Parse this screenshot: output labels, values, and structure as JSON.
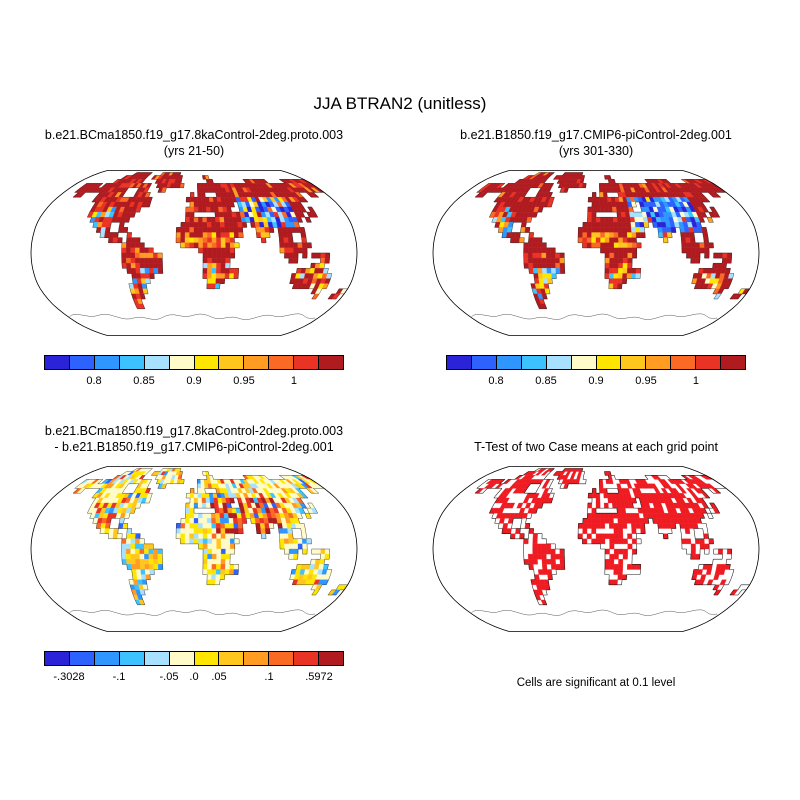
{
  "figure_title": "JJA BTRAN2 (unitless)",
  "colors": {
    "background": "#ffffff",
    "coastline": "#1c1c1c",
    "ttest_red": "#ee1c22",
    "scale": [
      "#2a23d8",
      "#2e62ff",
      "#2f96ff",
      "#3cc3ff",
      "#a8e1ff",
      "#fffbc8",
      "#ffe600",
      "#ffc61e",
      "#ff9c21",
      "#fa6a24",
      "#e93325",
      "#b01b20"
    ]
  },
  "chart_data": [
    {
      "type": "heatmap",
      "projection": "robinson",
      "title": "b.e21.BCma1850.f19_g17.8kaControl-2deg.proto.003",
      "subtitle": "(yrs 21-50)",
      "variable": "JJA BTRAN2",
      "units": "unitless",
      "value_range": [
        0.75,
        1.05
      ],
      "colorbar_ticks": [
        {
          "label": "0.8",
          "pos": 0.1667
        },
        {
          "label": "0.85",
          "pos": 0.3333
        },
        {
          "label": "0.9",
          "pos": 0.5
        },
        {
          "label": "0.95",
          "pos": 0.6667
        },
        {
          "label": "1",
          "pos": 0.8333
        }
      ],
      "description": "BTRAN2 near 1 (dark red) over most land; low values (blues) across central Asia; intermediate values over the Sahel, Mexico, southern Africa and Australia; Antarctica unshaded (outline only)"
    },
    {
      "type": "heatmap",
      "projection": "robinson",
      "title": "b.e21.B1850.f19_g17.CMIP6-piControl-2deg.001",
      "subtitle": "(yrs 301-330)",
      "variable": "JJA BTRAN2",
      "units": "unitless",
      "value_range": [
        0.75,
        1.05
      ],
      "colorbar_ticks": [
        {
          "label": "0.8",
          "pos": 0.1667
        },
        {
          "label": "0.85",
          "pos": 0.3333
        },
        {
          "label": "0.9",
          "pos": 0.5
        },
        {
          "label": "0.95",
          "pos": 0.6667
        },
        {
          "label": "1",
          "pos": 0.8333
        }
      ],
      "description": "Similar to case 1 but with a larger and deeper blue (low BTRAN2) region covering the Middle East and central/eastern Asia, plus more low values in western North America"
    },
    {
      "type": "heatmap",
      "projection": "robinson",
      "title": "b.e21.BCma1850.f19_g17.8kaControl-2deg.proto.003",
      "subtitle": "- b.e21.B1850.f19_g17.CMIP6-piControl-2deg.001",
      "variable": "JJA BTRAN2 difference",
      "units": "unitless",
      "value_min": -0.3028,
      "value_max": 0.5972,
      "colorbar_ticks": [
        {
          "label": "-.3028",
          "pos": 0.0833
        },
        {
          "label": "-.1",
          "pos": 0.25
        },
        {
          "label": "-.05",
          "pos": 0.4167
        },
        {
          "label": ".0",
          "pos": 0.5
        },
        {
          "label": ".05",
          "pos": 0.5833
        },
        {
          "label": ".1",
          "pos": 0.75
        },
        {
          "label": ".5972",
          "pos": 0.9167
        }
      ],
      "description": "Difference map: near zero (pale yellow) over most land; strong positive differences (orange/red) over the Middle East, North Africa and central Asia; scattered negative (blue) cells in the Americas and Australia"
    },
    {
      "type": "map",
      "projection": "robinson",
      "title": "T-Test of two Case means at each grid point",
      "caption": "Cells are significant at 0.1 level",
      "significance_level": 0.1,
      "description": "Red cells mark grid points where the two case means differ significantly at the 0.1 level; densest over Eurasia, Africa and the Americas"
    }
  ]
}
